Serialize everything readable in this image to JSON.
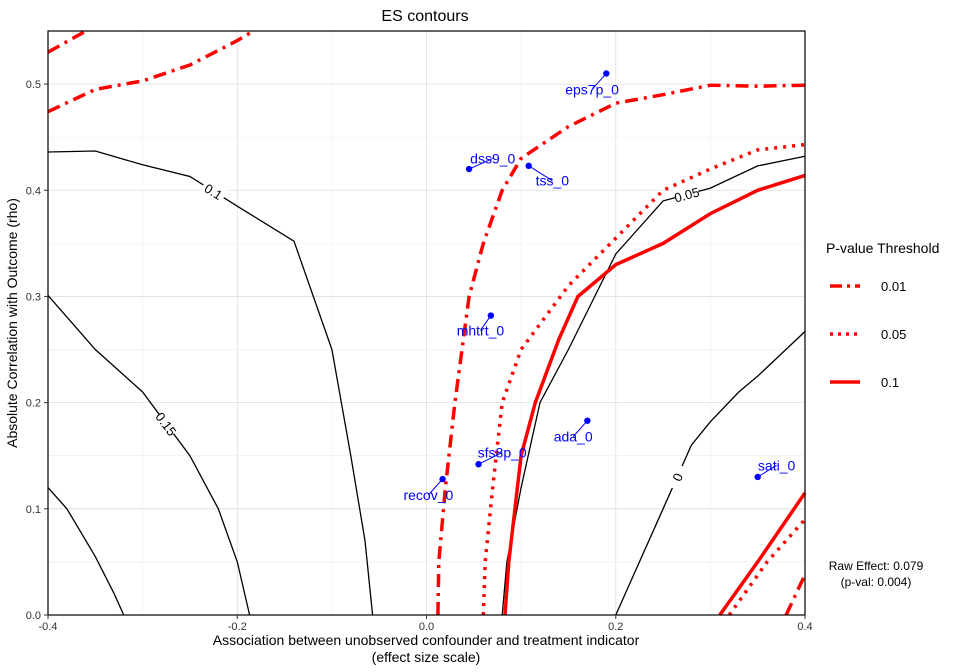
{
  "chart_data": {
    "type": "contour",
    "title": "ES contours",
    "xlabel": "Association between unobserved confounder and treatment indicator",
    "xlabel2": "(effect size scale)",
    "ylabel": "Absolute Correlation with Outcome (rho)",
    "xlim": [
      -0.4,
      0.4
    ],
    "ylim": [
      0,
      0.55
    ],
    "x_ticks": [
      -0.4,
      -0.2,
      0.0,
      0.2,
      0.4
    ],
    "x_tick_labels": [
      "-0.4",
      "-0.2",
      "0.0",
      "0.2",
      "0.4"
    ],
    "y_ticks": [
      0.0,
      0.1,
      0.2,
      0.3,
      0.4,
      0.5
    ],
    "y_tick_labels": [
      "0.0",
      "0.1",
      "0.2",
      "0.3",
      "0.4",
      "0.5"
    ],
    "grid": true,
    "legend": {
      "title": "P-value Threshold",
      "placement": "right",
      "entries": [
        {
          "label": "0.01",
          "dash": "dashdot"
        },
        {
          "label": "0.05",
          "dash": "dotted"
        },
        {
          "label": "0.1",
          "dash": "solid"
        }
      ]
    },
    "contours": [
      {
        "level": "0.15",
        "points": [
          [
            -0.4,
            0.301
          ],
          [
            -0.35,
            0.25
          ],
          [
            -0.3,
            0.21
          ],
          [
            -0.25,
            0.15
          ],
          [
            -0.22,
            0.1
          ],
          [
            -0.2,
            0.05
          ],
          [
            -0.187,
            0.0
          ]
        ]
      },
      {
        "level": "0.1",
        "points": [
          [
            -0.4,
            0.436
          ],
          [
            -0.35,
            0.437
          ],
          [
            -0.3,
            0.424
          ],
          [
            -0.25,
            0.413
          ],
          [
            -0.2,
            0.385
          ],
          [
            -0.14,
            0.352
          ],
          [
            -0.1,
            0.25
          ],
          [
            -0.08,
            0.15
          ],
          [
            -0.065,
            0.07
          ],
          [
            -0.057,
            0.0
          ]
        ]
      },
      {
        "level": "",
        "points": [
          [
            -0.4,
            0.12
          ],
          [
            -0.38,
            0.1
          ],
          [
            -0.35,
            0.055
          ],
          [
            -0.33,
            0.02
          ],
          [
            -0.32,
            0.0
          ]
        ]
      },
      {
        "level": "0.05",
        "points": [
          [
            0.08,
            0.0
          ],
          [
            0.085,
            0.05
          ],
          [
            0.1,
            0.12
          ],
          [
            0.12,
            0.2
          ],
          [
            0.15,
            0.25
          ],
          [
            0.2,
            0.34
          ],
          [
            0.25,
            0.39
          ],
          [
            0.3,
            0.402
          ],
          [
            0.35,
            0.423
          ],
          [
            0.4,
            0.432
          ]
        ]
      },
      {
        "level": "0",
        "points": [
          [
            0.2,
            0.0
          ],
          [
            0.22,
            0.04
          ],
          [
            0.25,
            0.1
          ],
          [
            0.28,
            0.16
          ],
          [
            0.3,
            0.182
          ],
          [
            0.33,
            0.21
          ],
          [
            0.35,
            0.225
          ],
          [
            0.4,
            0.267
          ]
        ]
      }
    ],
    "thresholds": [
      {
        "name": "0.01",
        "dash": "dashdot",
        "points": [
          [
            0.012,
            0.0
          ],
          [
            0.013,
            0.05
          ],
          [
            0.02,
            0.12
          ],
          [
            0.03,
            0.2
          ],
          [
            0.045,
            0.3
          ],
          [
            0.06,
            0.35
          ],
          [
            0.08,
            0.4
          ],
          [
            0.1,
            0.43
          ],
          [
            0.15,
            0.46
          ],
          [
            0.2,
            0.482
          ],
          [
            0.25,
            0.49
          ],
          [
            0.3,
            0.499
          ],
          [
            0.35,
            0.498
          ],
          [
            0.4,
            0.499
          ]
        ]
      },
      {
        "name": "0.01",
        "dash": "dashdot",
        "points": [
          [
            -0.4,
            0.474
          ],
          [
            -0.35,
            0.495
          ],
          [
            -0.3,
            0.503
          ],
          [
            -0.25,
            0.518
          ],
          [
            -0.2,
            0.541
          ],
          [
            -0.183,
            0.55
          ]
        ]
      },
      {
        "name": "0.01",
        "dash": "dashdot",
        "points": [
          [
            -0.4,
            0.53
          ],
          [
            -0.36,
            0.55
          ]
        ]
      },
      {
        "name": "0.05",
        "dash": "dotted",
        "points": [
          [
            0.06,
            0.0
          ],
          [
            0.062,
            0.05
          ],
          [
            0.07,
            0.12
          ],
          [
            0.08,
            0.2
          ],
          [
            0.1,
            0.25
          ],
          [
            0.15,
            0.31
          ],
          [
            0.2,
            0.355
          ],
          [
            0.25,
            0.4
          ],
          [
            0.3,
            0.42
          ],
          [
            0.35,
            0.438
          ],
          [
            0.4,
            0.443
          ]
        ]
      },
      {
        "name": "0.1",
        "dash": "solid",
        "points": [
          [
            0.083,
            0.0
          ],
          [
            0.087,
            0.05
          ],
          [
            0.1,
            0.15
          ],
          [
            0.115,
            0.2
          ],
          [
            0.14,
            0.26
          ],
          [
            0.16,
            0.3
          ],
          [
            0.2,
            0.33
          ],
          [
            0.25,
            0.35
          ],
          [
            0.3,
            0.378
          ],
          [
            0.35,
            0.4
          ],
          [
            0.4,
            0.414
          ]
        ]
      },
      {
        "name": "0.1",
        "dash": "solid",
        "points": [
          [
            0.31,
            0.0
          ],
          [
            0.35,
            0.05
          ],
          [
            0.4,
            0.115
          ]
        ]
      },
      {
        "name": "0.05",
        "dash": "dotted",
        "points": [
          [
            0.32,
            0.0
          ],
          [
            0.36,
            0.05
          ],
          [
            0.4,
            0.09
          ]
        ]
      },
      {
        "name": "0.01",
        "dash": "dashdot",
        "points": [
          [
            0.38,
            0.0
          ],
          [
            0.4,
            0.038
          ]
        ]
      }
    ],
    "covariates": [
      {
        "label": "eps7p_0",
        "x": 0.19,
        "y": 0.51,
        "lx": 0.175,
        "ly": 0.495
      },
      {
        "label": "dss9_0",
        "x": 0.045,
        "y": 0.42,
        "lx": 0.07,
        "ly": 0.43
      },
      {
        "label": "tss_0",
        "x": 0.108,
        "y": 0.423,
        "lx": 0.133,
        "ly": 0.409
      },
      {
        "label": "mhtrt_0",
        "x": 0.068,
        "y": 0.282,
        "lx": 0.057,
        "ly": 0.268
      },
      {
        "label": "ada_0",
        "x": 0.17,
        "y": 0.183,
        "lx": 0.155,
        "ly": 0.168
      },
      {
        "label": "sfs8p_0",
        "x": 0.055,
        "y": 0.142,
        "lx": 0.08,
        "ly": 0.153
      },
      {
        "label": "recov_0",
        "x": 0.017,
        "y": 0.128,
        "lx": 0.002,
        "ly": 0.113
      },
      {
        "label": "sati_0",
        "x": 0.35,
        "y": 0.13,
        "lx": 0.37,
        "ly": 0.141
      }
    ]
  },
  "annotation": {
    "line1": "Raw Effect: 0.079",
    "line2": "(p-val: 0.004)"
  }
}
